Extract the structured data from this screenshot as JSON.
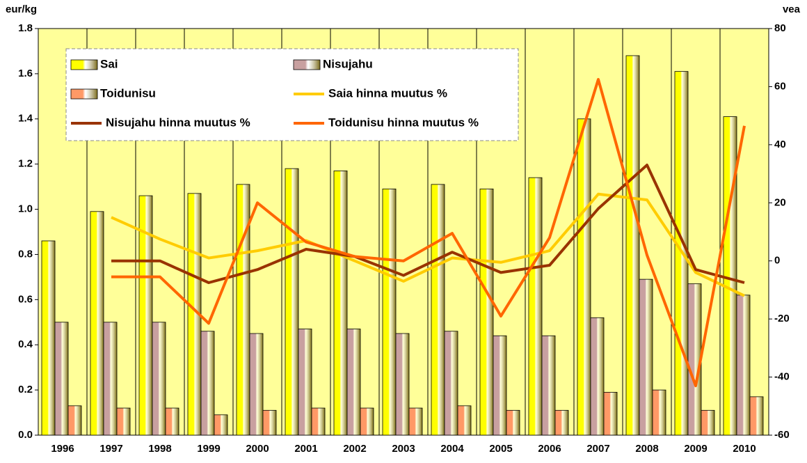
{
  "chart_data": {
    "type": "bar-line",
    "y_label": "eur/kg",
    "y2_label": "vea",
    "categories": [
      "1996",
      "1997",
      "1998",
      "1999",
      "2000",
      "2001",
      "2002",
      "2003",
      "2004",
      "2005",
      "2006",
      "2007",
      "2008",
      "2009",
      "2010"
    ],
    "series": [
      {
        "name": "Sai",
        "type": "bar",
        "color": "#ffff00",
        "values": [
          0.86,
          0.99,
          1.06,
          1.07,
          1.11,
          1.18,
          1.17,
          1.09,
          1.11,
          1.09,
          1.14,
          1.4,
          1.68,
          1.61,
          1.41
        ]
      },
      {
        "name": "Nisujahu",
        "type": "bar",
        "color": "#c8a0a0",
        "values": [
          0.5,
          0.5,
          0.5,
          0.46,
          0.45,
          0.47,
          0.47,
          0.45,
          0.46,
          0.44,
          0.44,
          0.52,
          0.69,
          0.67,
          0.62
        ]
      },
      {
        "name": "Toidunisu",
        "type": "bar",
        "color": "#ff9966",
        "values": [
          0.13,
          0.12,
          0.12,
          0.09,
          0.11,
          0.12,
          0.12,
          0.12,
          0.13,
          0.11,
          0.11,
          0.19,
          0.2,
          0.11,
          0.17
        ]
      },
      {
        "name": "Saia hinna muutus %",
        "type": "line",
        "axis": "y2",
        "color": "#ffcc00",
        "values": [
          null,
          15,
          7.5,
          1,
          3.5,
          7,
          0,
          -7,
          1,
          -0.5,
          3.5,
          23,
          21,
          -4,
          -12
        ]
      },
      {
        "name": "Nisujahu hinna muutus %",
        "type": "line",
        "axis": "y2",
        "color": "#993300",
        "values": [
          null,
          0,
          0,
          -7.5,
          -3,
          4,
          1.5,
          -5,
          3,
          -4,
          -1.5,
          18,
          33,
          -3,
          -7.5
        ]
      },
      {
        "name": "Toidunisu hinna muutus %",
        "type": "line",
        "axis": "y2",
        "color": "#ff6600",
        "values": [
          null,
          -5.5,
          -5.5,
          -21.5,
          20,
          6.5,
          1.5,
          0,
          9.5,
          -19,
          8,
          62.5,
          2,
          -43,
          46.5
        ]
      }
    ],
    "ylim": [
      0,
      1.8
    ],
    "yticks": [
      {
        "value": 0,
        "label": "0.0"
      },
      0.2,
      0.4,
      0.6,
      0.8,
      {
        "value": 1,
        "label": "1.0"
      },
      1.2,
      1.4,
      1.6,
      1.8
    ],
    "y2lim": [
      -60,
      80
    ],
    "y2ticks": [
      -60,
      -40,
      -20,
      0,
      20,
      40,
      60,
      80
    ],
    "plot_background": "#ffff99",
    "grid": "vertical"
  }
}
